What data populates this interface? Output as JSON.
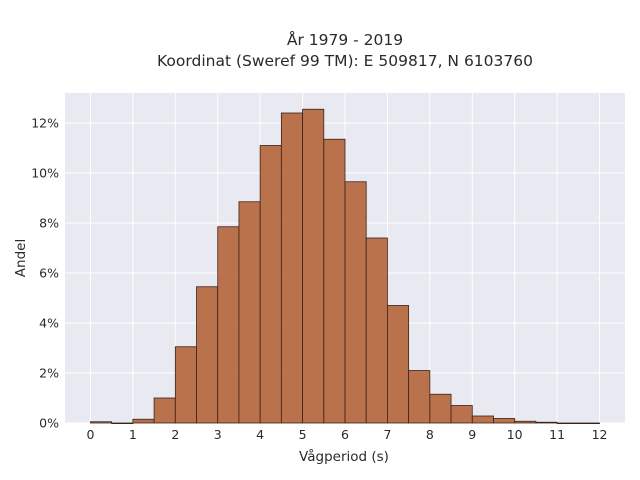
{
  "chart_data": {
    "type": "bar",
    "title": "År 1979 - 2019",
    "subtitle": "Koordinat (Sweref 99 TM): E 509817, N 6103760",
    "xlabel": "Vågperiod (s)",
    "ylabel": "Andel",
    "bin_width": 0.5,
    "bins_start": [
      0,
      0.5,
      1,
      1.5,
      2,
      2.5,
      3,
      3.5,
      4,
      4.5,
      5,
      5.5,
      6,
      6.5,
      7,
      7.5,
      8,
      8.5,
      9,
      9.5,
      10,
      10.5,
      11,
      11.5
    ],
    "values": [
      0.05,
      0.0,
      0.15,
      1.0,
      3.05,
      5.45,
      7.85,
      8.85,
      11.1,
      12.4,
      12.55,
      11.35,
      9.65,
      7.4,
      4.7,
      2.1,
      1.15,
      0.7,
      0.28,
      0.18,
      0.07,
      0.03,
      0.0,
      0.0
    ],
    "x_ticks": [
      0,
      1,
      2,
      3,
      4,
      5,
      6,
      7,
      8,
      9,
      10,
      11,
      12
    ],
    "x_tick_labels": [
      "0",
      "1",
      "2",
      "3",
      "4",
      "5",
      "6",
      "7",
      "8",
      "9",
      "10",
      "11",
      "12"
    ],
    "y_ticks": [
      0,
      2,
      4,
      6,
      8,
      10,
      12
    ],
    "y_tick_labels": [
      "0%",
      "2%",
      "4%",
      "6%",
      "8%",
      "10%",
      "12%"
    ],
    "xlim": [
      -0.6,
      12.6
    ],
    "ylim": [
      0,
      13.2
    ],
    "grid": true,
    "bar_color": "#b5653b",
    "bar_edge_color": "#3a2418",
    "plot_background": "#e8e9f1",
    "grid_color": "#ffffff"
  }
}
